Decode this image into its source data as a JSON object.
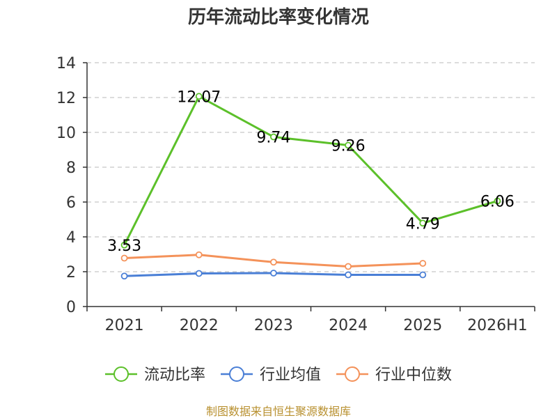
{
  "chart_data": {
    "type": "line",
    "title": "历年流动比率变化情况",
    "categories": [
      "2021",
      "2022",
      "2023",
      "2024",
      "2025",
      "2026H1"
    ],
    "ylim": [
      0,
      14
    ],
    "yticks": [
      0,
      2,
      4,
      6,
      8,
      10,
      12,
      14
    ],
    "grid": true,
    "legend_position": "bottom",
    "series": [
      {
        "name": "流动比率",
        "color": "#5cc02a",
        "values": [
          3.53,
          12.07,
          9.74,
          9.26,
          4.79,
          6.06
        ],
        "labels": [
          "3.53",
          "12.07",
          "9.74",
          "9.26",
          "4.79",
          "6.06"
        ],
        "show_labels": true
      },
      {
        "name": "行业均值",
        "color": "#4a7fd6",
        "values": [
          1.75,
          1.9,
          1.92,
          1.82,
          1.82,
          null
        ],
        "show_labels": false
      },
      {
        "name": "行业中位数",
        "color": "#f4925a",
        "values": [
          2.78,
          2.97,
          2.55,
          2.3,
          2.48,
          null
        ],
        "show_labels": false
      }
    ]
  },
  "footer": {
    "source": "制图数据来自恒生聚源数据库"
  }
}
